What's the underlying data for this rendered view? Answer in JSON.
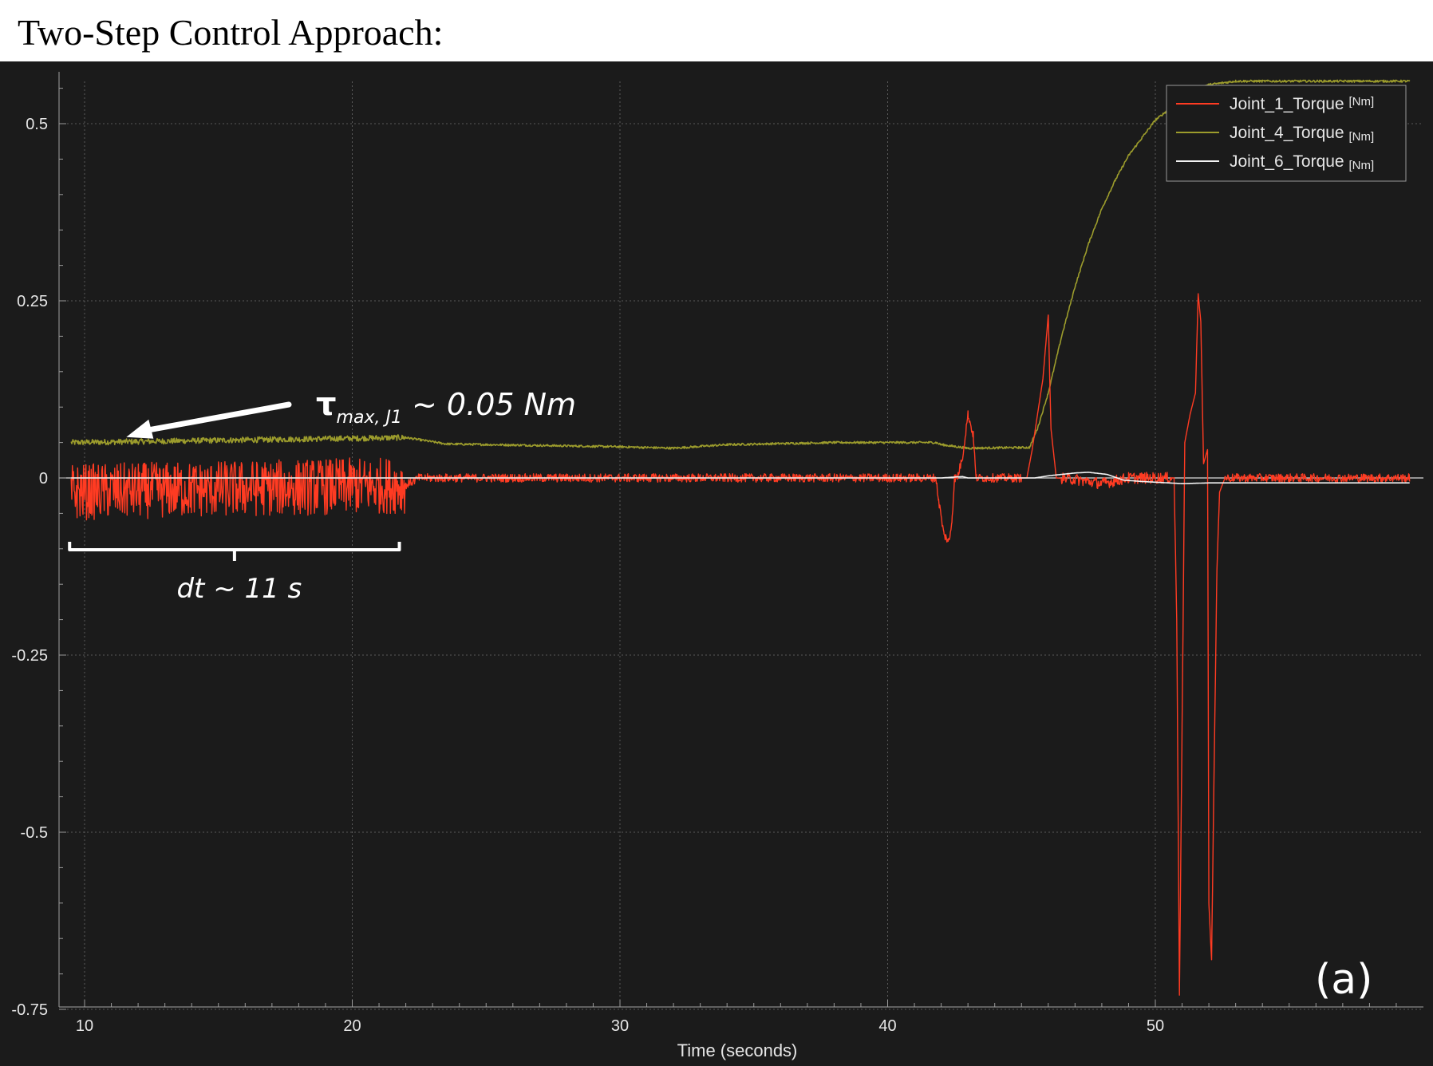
{
  "page": {
    "title": "Two-Step Control Approach:"
  },
  "chart_data": {
    "type": "line",
    "title": "",
    "xlabel": "Time (seconds)",
    "ylabel": "",
    "xlim": [
      9.4,
      59.5
    ],
    "ylim": [
      -0.75,
      0.56
    ],
    "x_ticks": [
      10,
      20,
      30,
      40,
      50
    ],
    "x_tick_labels": [
      "10",
      "20",
      "30",
      "40",
      "50"
    ],
    "y_ticks": [
      0.5,
      0.25,
      0,
      -0.25,
      -0.5,
      -0.75
    ],
    "y_tick_labels": [
      "0.5",
      "0.25",
      "0",
      "-0.25",
      "-0.5",
      "-0.75"
    ],
    "grid": true,
    "legend_position": "top-right",
    "background": "#1b1b1b",
    "series": [
      {
        "name": "Joint_1_Torque",
        "unit": "[Nm]",
        "color": "#ff3b22",
        "points": [
          [
            9.5,
            -0.02
          ],
          [
            22.0,
            -0.01
          ],
          [
            22.5,
            0.0
          ],
          [
            41.8,
            0.0
          ],
          [
            41.9,
            -0.03
          ],
          [
            42.1,
            -0.08
          ],
          [
            42.3,
            -0.09
          ],
          [
            42.4,
            -0.06
          ],
          [
            42.5,
            0.0
          ],
          [
            42.6,
            0.0
          ],
          [
            42.8,
            0.03
          ],
          [
            43.0,
            0.09
          ],
          [
            43.2,
            0.06
          ],
          [
            43.3,
            0.0
          ],
          [
            45.2,
            0.0
          ],
          [
            45.4,
            0.04
          ],
          [
            45.6,
            0.09
          ],
          [
            45.8,
            0.14
          ],
          [
            46.0,
            0.23
          ],
          [
            46.1,
            0.07
          ],
          [
            46.3,
            0.0
          ],
          [
            47.0,
            -0.002
          ],
          [
            48.0,
            -0.008
          ],
          [
            49.0,
            0.0
          ],
          [
            50.7,
            0.0
          ],
          [
            50.8,
            -0.2
          ],
          [
            50.9,
            -0.73
          ],
          [
            51.0,
            -0.35
          ],
          [
            51.1,
            0.05
          ],
          [
            51.3,
            0.09
          ],
          [
            51.5,
            0.12
          ],
          [
            51.6,
            0.26
          ],
          [
            51.7,
            0.22
          ],
          [
            51.8,
            0.02
          ],
          [
            51.95,
            0.04
          ],
          [
            52.0,
            -0.6
          ],
          [
            52.1,
            -0.68
          ],
          [
            52.2,
            -0.4
          ],
          [
            52.3,
            -0.13
          ],
          [
            52.4,
            -0.02
          ],
          [
            52.6,
            0.0
          ],
          [
            59.5,
            0.0
          ]
        ],
        "noise": [
          {
            "x_from": 9.5,
            "x_to": 22.0,
            "amplitude": 0.04
          },
          {
            "x_from": 22.0,
            "x_to": 45.0,
            "amplitude": 0.006
          },
          {
            "x_from": 46.5,
            "x_to": 50.6,
            "amplitude": 0.008
          },
          {
            "x_from": 52.6,
            "x_to": 59.5,
            "amplitude": 0.006
          }
        ]
      },
      {
        "name": "Joint_4_Torque",
        "unit": "[Nm]",
        "color": "#9c9c2c",
        "points": [
          [
            9.5,
            0.05
          ],
          [
            22.0,
            0.057
          ],
          [
            23.5,
            0.048
          ],
          [
            30.0,
            0.044
          ],
          [
            32.0,
            0.042
          ],
          [
            34.0,
            0.047
          ],
          [
            38.0,
            0.05
          ],
          [
            41.8,
            0.05
          ],
          [
            42.0,
            0.047
          ],
          [
            42.4,
            0.045
          ],
          [
            43.0,
            0.042
          ],
          [
            45.3,
            0.043
          ],
          [
            45.6,
            0.07
          ],
          [
            46.0,
            0.12
          ],
          [
            46.5,
            0.2
          ],
          [
            47.0,
            0.27
          ],
          [
            47.5,
            0.33
          ],
          [
            48.0,
            0.38
          ],
          [
            48.5,
            0.42
          ],
          [
            49.0,
            0.455
          ],
          [
            49.5,
            0.48
          ],
          [
            50.0,
            0.505
          ],
          [
            50.5,
            0.52
          ],
          [
            51.0,
            0.53
          ],
          [
            51.4,
            0.535
          ],
          [
            51.5,
            0.55
          ],
          [
            52.0,
            0.555
          ],
          [
            53.0,
            0.56
          ],
          [
            59.5,
            0.56
          ]
        ],
        "noise": [
          {
            "x_from": 9.5,
            "x_to": 22.0,
            "amplitude": 0.004
          },
          {
            "x_from": 22.0,
            "x_to": 59.5,
            "amplitude": 0.0015
          }
        ]
      },
      {
        "name": "Joint_6_Torque",
        "unit": "[Nm]",
        "color": "#f2f2f2",
        "points": [
          [
            9.5,
            0.0
          ],
          [
            42.0,
            0.0
          ],
          [
            42.8,
            0.002
          ],
          [
            43.0,
            0.0
          ],
          [
            45.5,
            0.0
          ],
          [
            46.0,
            0.003
          ],
          [
            47.0,
            0.007
          ],
          [
            47.5,
            0.008
          ],
          [
            48.2,
            0.005
          ],
          [
            48.8,
            -0.003
          ],
          [
            49.5,
            -0.005
          ],
          [
            51.0,
            -0.008
          ],
          [
            52.0,
            -0.007
          ],
          [
            53.0,
            -0.007
          ],
          [
            59.5,
            -0.007
          ]
        ]
      }
    ],
    "annotations": [
      {
        "type": "arrow-label",
        "label_main": "τ",
        "label_sub": "max, J1",
        "label_tail": " ~ 0.05 Nm",
        "points_to": [
          11.5,
          0.06
        ]
      },
      {
        "type": "bracket",
        "label": "dt ~ 11 s",
        "x_from": 9.5,
        "x_to": 21.7
      }
    ],
    "panel_label": "(a)"
  }
}
